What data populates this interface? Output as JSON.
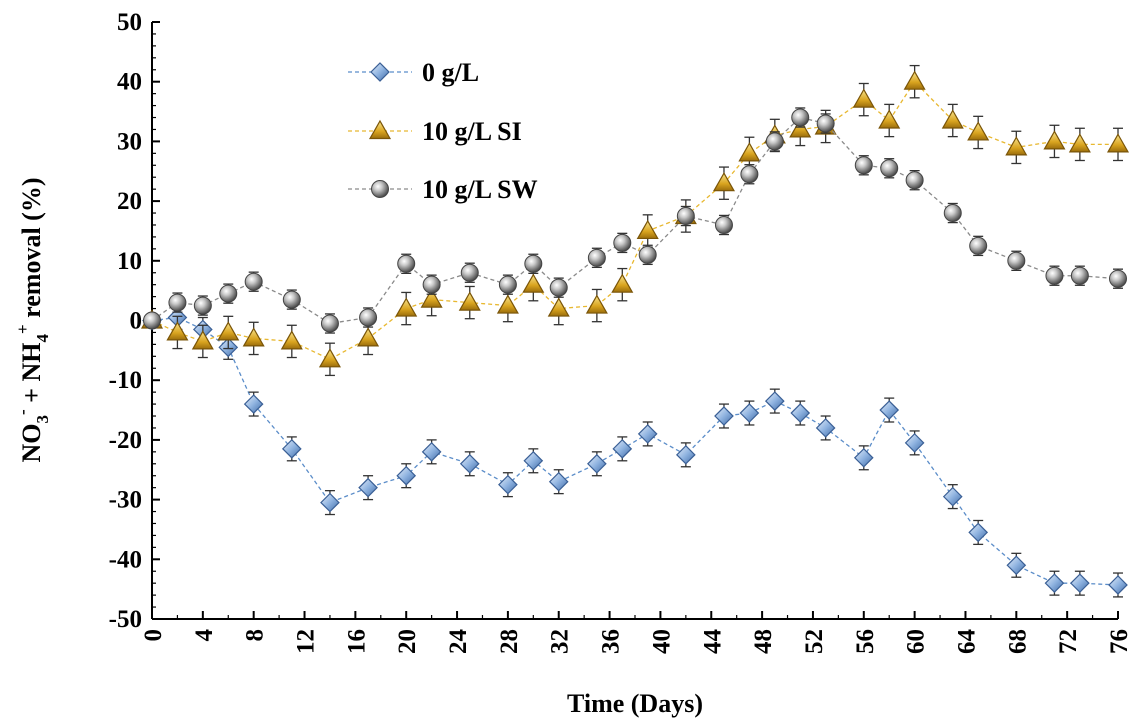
{
  "chart_data": {
    "type": "line",
    "xlabel": "Time (Days)",
    "ylabel": {
      "parts": [
        "NO",
        "3",
        "-",
        " + NH",
        "4",
        "+",
        " removal (%)"
      ]
    },
    "xlim": [
      0,
      76
    ],
    "ylim": [
      -50,
      50
    ],
    "x_ticks": [
      0,
      4,
      8,
      12,
      16,
      20,
      24,
      28,
      32,
      36,
      40,
      44,
      48,
      52,
      56,
      60,
      64,
      68,
      72,
      76
    ],
    "y_ticks": [
      -50,
      -40,
      -30,
      -20,
      -10,
      0,
      10,
      20,
      30,
      40,
      50
    ],
    "grid": false,
    "legend_position": "top-left",
    "x": [
      0,
      2,
      4,
      6,
      8,
      11,
      14,
      17,
      20,
      22,
      25,
      28,
      30,
      32,
      35,
      37,
      39,
      42,
      45,
      47,
      49,
      51,
      53,
      56,
      58,
      60,
      63,
      65,
      68,
      71,
      73,
      76
    ],
    "series": [
      {
        "name": "0 g/L",
        "marker": "diamond",
        "color": "#5b8dc9",
        "values": [
          0,
          0.5,
          -1.5,
          -4.5,
          -14,
          -21.5,
          -30.5,
          -28,
          -26,
          -22,
          -24,
          -27.5,
          -23.5,
          -27,
          -24,
          -21.5,
          -19,
          -22.5,
          -16,
          -15.5,
          -13.5,
          -15.5,
          -18,
          -23,
          -15,
          -20.5,
          -29.5,
          -35.5,
          -41,
          -44,
          -44,
          -44.3
        ],
        "error": 2
      },
      {
        "name": "10 g/L SI",
        "marker": "triangle",
        "color": "#e8b830",
        "values": [
          0,
          -2,
          -3.5,
          -2,
          -3,
          -3.5,
          -6.5,
          -3,
          2,
          3.5,
          3,
          2.5,
          6,
          2,
          2.5,
          6,
          15,
          17.5,
          23,
          28,
          31,
          32,
          32.5,
          37,
          33.5,
          40,
          33.5,
          31.5,
          29,
          30,
          29.5,
          29.5
        ],
        "error": 2.7
      },
      {
        "name": "10 g/L SW",
        "marker": "sphere",
        "color": "#8a8a8a",
        "values": [
          0,
          3,
          2.5,
          4.5,
          6.5,
          3.5,
          -0.5,
          0.5,
          9.5,
          6,
          8,
          6,
          9.5,
          5.5,
          10.5,
          13,
          11,
          17.5,
          16,
          24.5,
          30,
          34,
          33,
          26,
          25.5,
          23.5,
          18,
          12.5,
          10,
          7.5,
          7.5,
          7
        ],
        "error": 1.6
      }
    ]
  }
}
